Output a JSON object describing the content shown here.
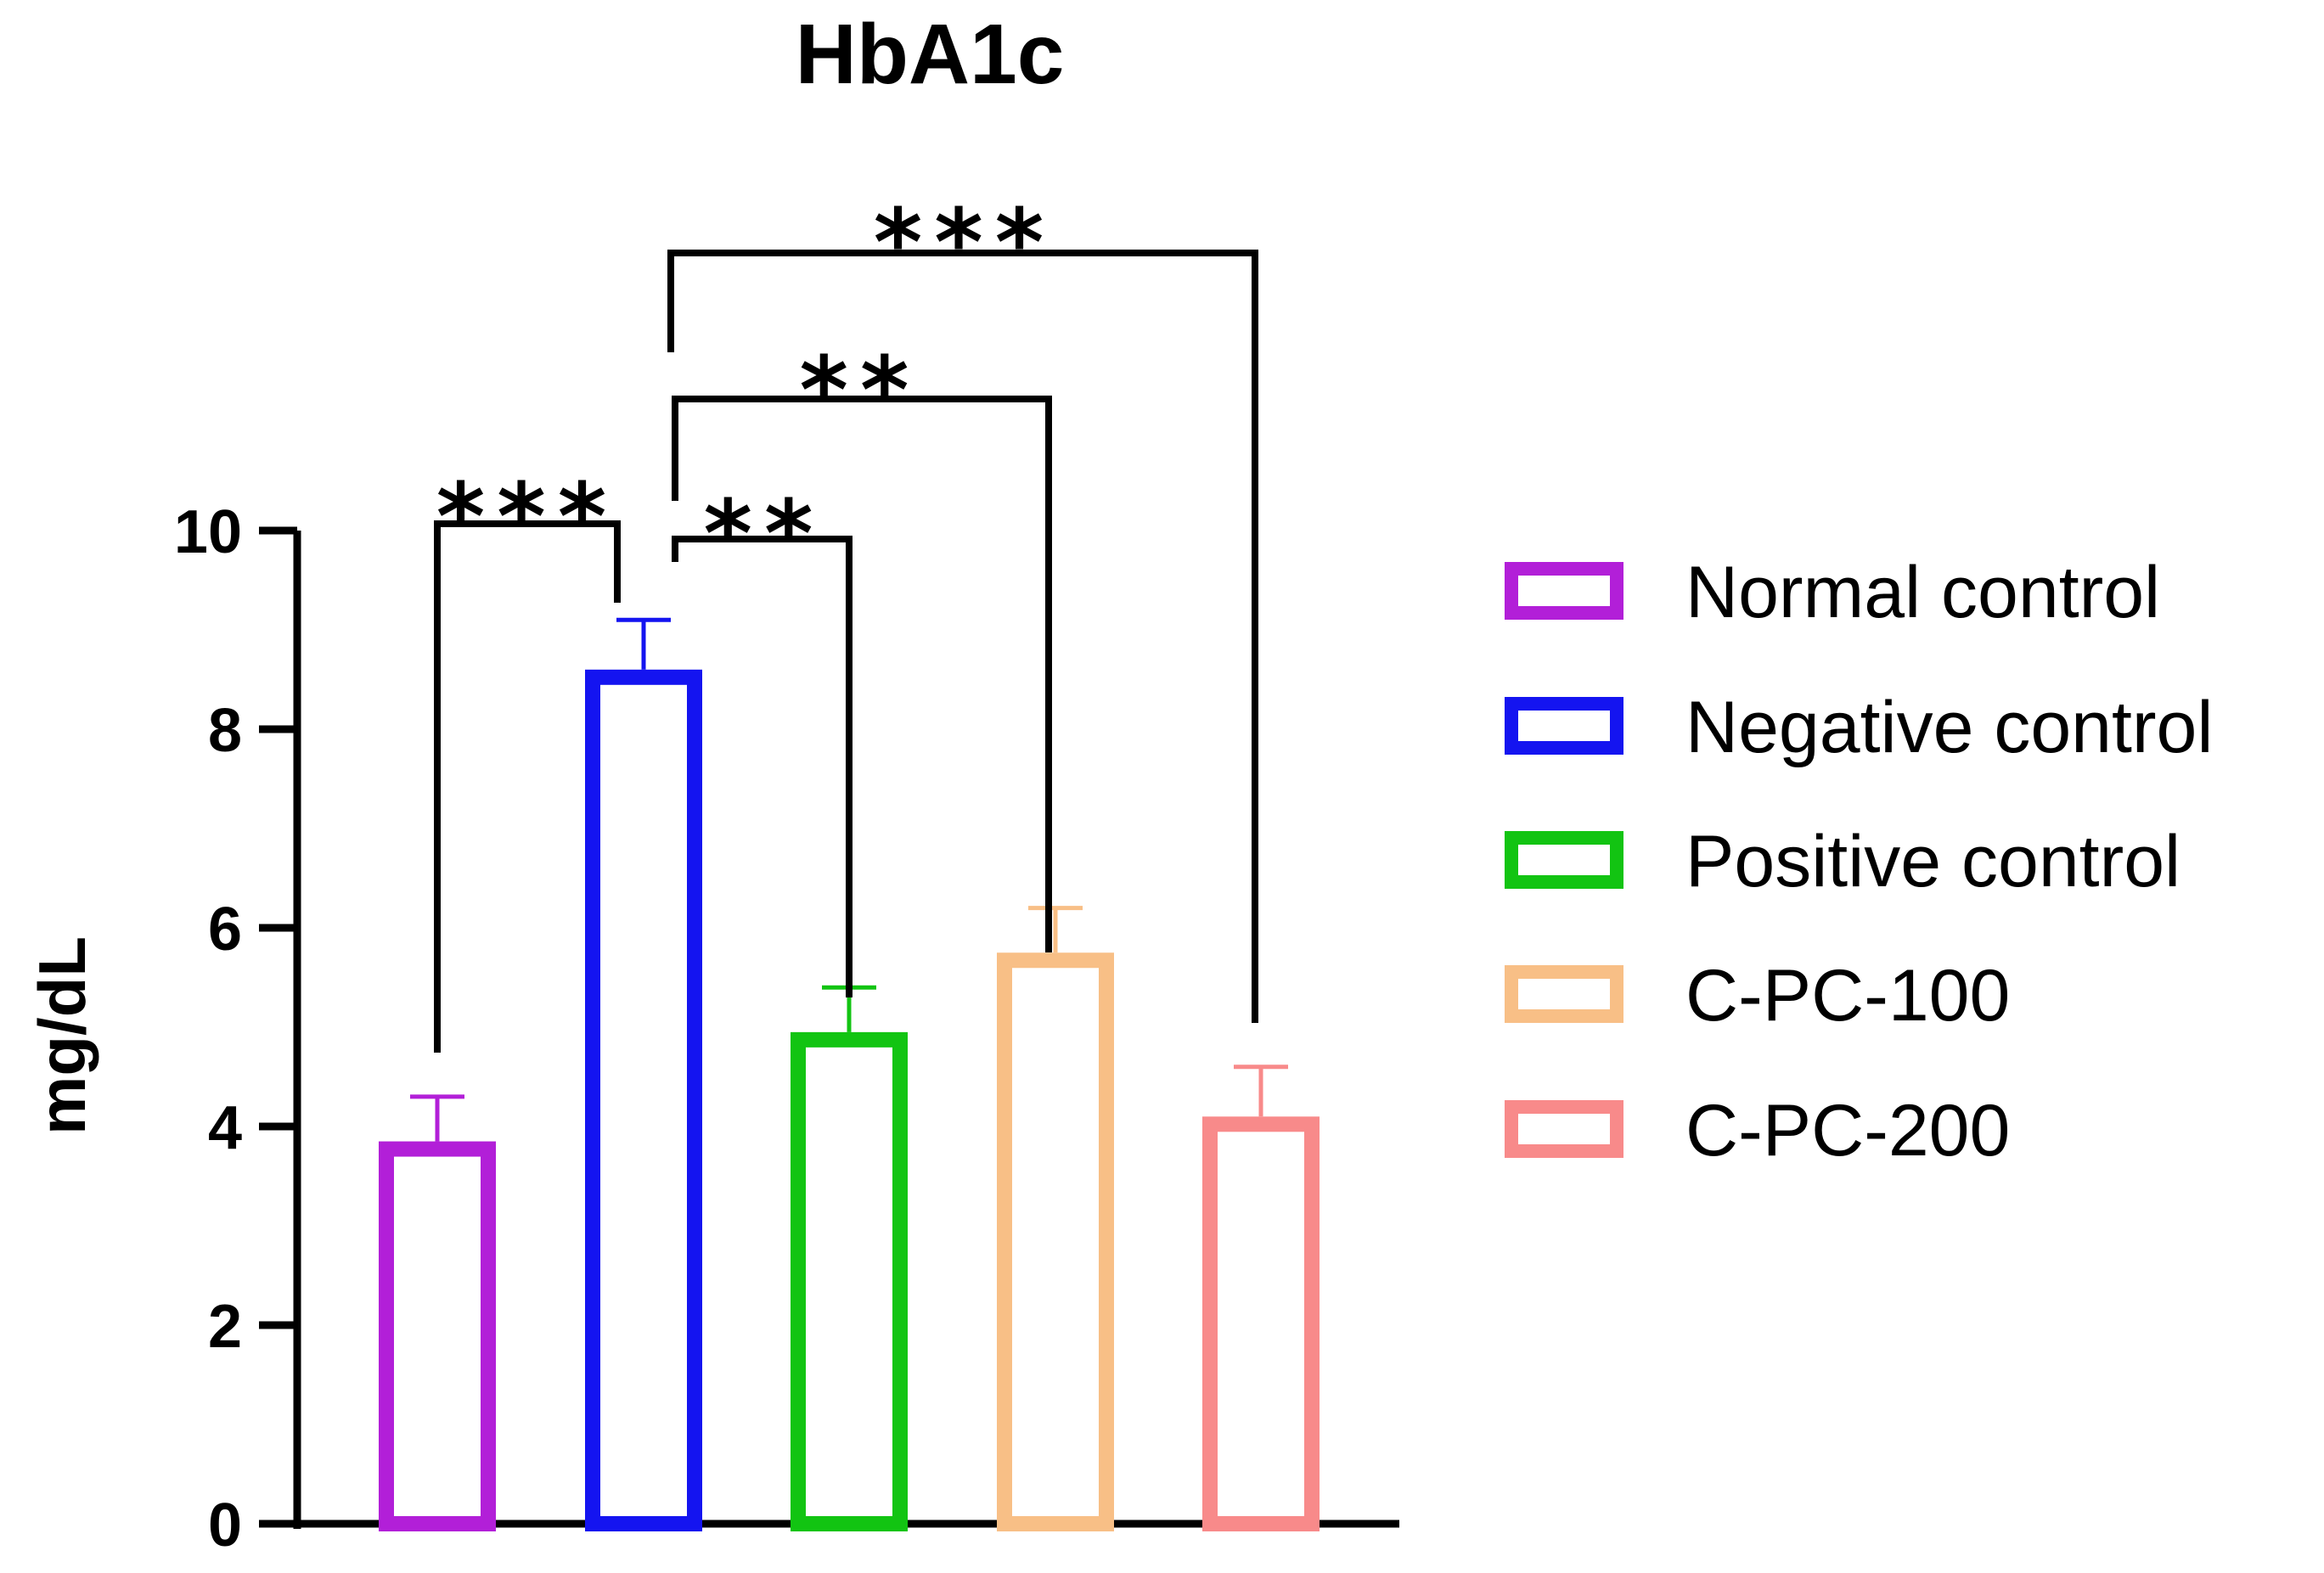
{
  "chart_data": {
    "type": "bar",
    "title": "HbA1c",
    "xlabel": "",
    "ylabel": "mg/dL",
    "ylim": [
      0,
      10
    ],
    "yticks": [
      0,
      2,
      4,
      6,
      8,
      10
    ],
    "grid": false,
    "bar_style": "outline",
    "legend_position": "right",
    "categories": [
      "Normal control",
      "Negative control",
      "Positive control",
      "C-PC-100",
      "C-PC-200"
    ],
    "values": [
      3.85,
      8.6,
      4.95,
      5.75,
      4.1
    ],
    "errors": [
      0.45,
      0.5,
      0.45,
      0.45,
      0.5
    ],
    "colors": [
      "#b21fd8",
      "#1414f0",
      "#12c412",
      "#f8bf86",
      "#f88a8a"
    ],
    "significance": [
      {
        "from": 0,
        "to": 1,
        "label": "***"
      },
      {
        "from": 1,
        "to": 2,
        "label": "**"
      },
      {
        "from": 1,
        "to": 3,
        "label": "**"
      },
      {
        "from": 1,
        "to": 4,
        "label": "***"
      }
    ]
  }
}
